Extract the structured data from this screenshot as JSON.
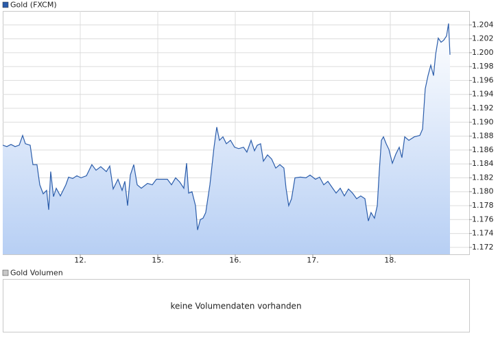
{
  "chart_data": [
    {
      "type": "line",
      "x": [
        0,
        0.053,
        0.106,
        0.159,
        0.212,
        0.257,
        0.292,
        0.354,
        0.389,
        0.442,
        0.478,
        0.522,
        0.566,
        0.593,
        0.619,
        0.655,
        0.69,
        0.743,
        0.814,
        0.85,
        0.903,
        0.956,
        1.009,
        1.08,
        1.15,
        1.204,
        1.265,
        1.336,
        1.381,
        1.425,
        1.487,
        1.54,
        1.575,
        1.611,
        1.646,
        1.69,
        1.735,
        1.788,
        1.867,
        1.929,
        1.982,
        2.053,
        2.124,
        2.177,
        2.23,
        2.283,
        2.336,
        2.372,
        2.398,
        2.442,
        2.487,
        2.513,
        2.549,
        2.584,
        2.619,
        2.673,
        2.726,
        2.761,
        2.796,
        2.841,
        2.885,
        2.938,
        2.991,
        3.044,
        3.106,
        3.15,
        3.204,
        3.248,
        3.283,
        3.327,
        3.363,
        3.416,
        3.469,
        3.522,
        3.575,
        3.628,
        3.655,
        3.69,
        3.726,
        3.77,
        3.841,
        3.912,
        3.965,
        4.035,
        4.088,
        4.142,
        4.195,
        4.257,
        4.301,
        4.354,
        4.407,
        4.46,
        4.513,
        4.566,
        4.619,
        4.673,
        4.717,
        4.752,
        4.796,
        4.832,
        4.858,
        4.885,
        4.912,
        4.947,
        4.982,
        5.027,
        5.071,
        5.115,
        5.15,
        5.186,
        5.239,
        5.31,
        5.381,
        5.416,
        5.451,
        5.487,
        5.522,
        5.558,
        5.584,
        5.619,
        5.655,
        5.69,
        5.726,
        5.752,
        5.77
      ],
      "series": [
        {
          "name": "Gold (FXCM)",
          "color": "#2a5caa",
          "values": [
            1.1867,
            1.1865,
            1.1868,
            1.1865,
            1.1867,
            1.1881,
            1.1869,
            1.1867,
            1.1839,
            1.1839,
            1.181,
            1.1797,
            1.1802,
            1.1774,
            1.1829,
            1.1793,
            1.1805,
            1.1794,
            1.181,
            1.1821,
            1.1819,
            1.1823,
            1.182,
            1.1823,
            1.1839,
            1.1831,
            1.1836,
            1.1829,
            1.1837,
            1.1804,
            1.1818,
            1.1802,
            1.1815,
            1.178,
            1.1824,
            1.1839,
            1.181,
            1.1805,
            1.1812,
            1.181,
            1.1818,
            1.1818,
            1.1818,
            1.181,
            1.182,
            1.1814,
            1.1805,
            1.1841,
            1.1798,
            1.18,
            1.178,
            1.1745,
            1.176,
            1.1762,
            1.177,
            1.181,
            1.1864,
            1.1893,
            1.1874,
            1.1879,
            1.1869,
            1.1874,
            1.1864,
            1.1862,
            1.1864,
            1.1857,
            1.1874,
            1.1859,
            1.1867,
            1.1869,
            1.1844,
            1.1853,
            1.1847,
            1.1834,
            1.1839,
            1.1834,
            1.1805,
            1.178,
            1.179,
            1.182,
            1.1821,
            1.182,
            1.1824,
            1.1818,
            1.1821,
            1.181,
            1.1815,
            1.1805,
            1.1798,
            1.1805,
            1.1794,
            1.1804,
            1.1798,
            1.179,
            1.1794,
            1.179,
            1.1758,
            1.177,
            1.1762,
            1.178,
            1.1829,
            1.1874,
            1.1879,
            1.1869,
            1.1861,
            1.1841,
            1.1854,
            1.1864,
            1.1849,
            1.1879,
            1.1874,
            1.1879,
            1.1881,
            1.189,
            1.1948,
            1.1967,
            1.1982,
            1.1967,
            1.1997,
            1.2021,
            1.2015,
            1.2018,
            1.2024,
            1.2042,
            1.1997
          ]
        }
      ],
      "xlim": [
        0,
        6.018
      ],
      "xticks": [
        {
          "value": 1,
          "label": "12."
        },
        {
          "value": 2,
          "label": "15."
        },
        {
          "value": 3,
          "label": "16."
        },
        {
          "value": 4,
          "label": "17."
        },
        {
          "value": 5,
          "label": "18."
        }
      ],
      "ylim": [
        1.171,
        1.206
      ],
      "yticks": [
        1.172,
        1.174,
        1.176,
        1.178,
        {
          "value": 1.18,
          "label": "1.180"
        },
        1.182,
        1.184,
        1.186,
        1.188,
        {
          "value": 1.19,
          "label": "1.190"
        },
        1.192,
        1.194,
        1.196,
        1.198,
        {
          "value": 1.2,
          "label": "1.200"
        },
        1.202,
        1.204
      ],
      "grid": true
    },
    {
      "type": "empty",
      "legend": "Gold Volumen",
      "annotation": "keine Volumendaten vorhanden",
      "color": "#c8c8c8"
    }
  ]
}
